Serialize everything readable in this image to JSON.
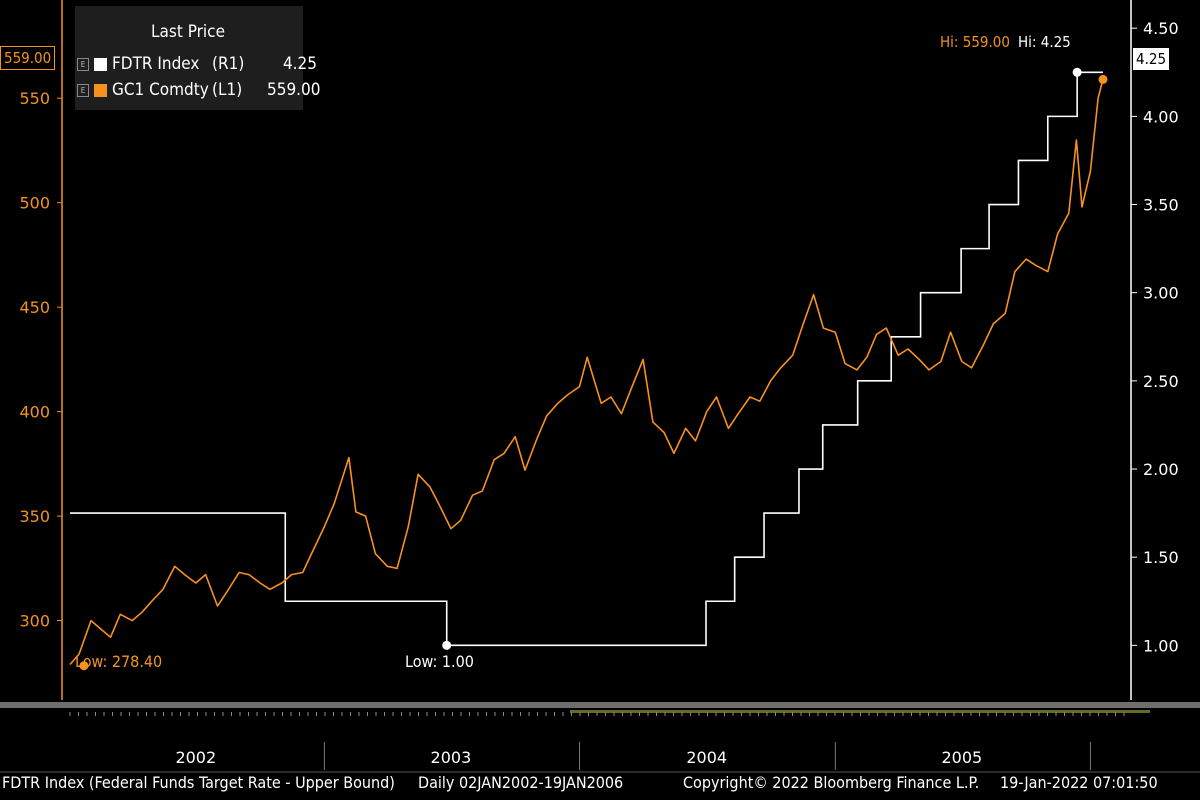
{
  "legend": {
    "title": "Last Price",
    "items": [
      {
        "ticker": "FDTR Index",
        "axis": "(R1)",
        "value": "4.25",
        "color": "#ffffff"
      },
      {
        "ticker": "GC1 Comdty",
        "axis": "(L1)",
        "value": "559.00",
        "color": "#f5921e"
      }
    ]
  },
  "footer": {
    "description": "FDTR Index (Federal Funds Target Rate - Upper Bound)",
    "range": "Daily 02JAN2002-19JAN2006",
    "copyright": "Copyright© 2022 Bloomberg Finance L.P.",
    "timestamp": "19-Jan-2022 07:01:50"
  },
  "annotations": {
    "gold_high": "Hi: 559.00",
    "rate_high": "Hi: 4.25",
    "gold_low": "Low: 278.40",
    "rate_low": "Low: 1.00",
    "left_flag": "559.00",
    "right_flag": "4.25"
  },
  "colors": {
    "gold": "#f5921e",
    "rate": "#ffffff",
    "background": "#000000"
  },
  "chart_data": {
    "type": "line",
    "x_tick_labels": [
      "2002",
      "2003",
      "2004",
      "2005"
    ],
    "left_axis": {
      "series": "GC1 Comdty",
      "ticks": [
        300,
        350,
        400,
        450,
        500,
        550
      ],
      "range": [
        262,
        597
      ]
    },
    "right_axis": {
      "series": "FDTR Index",
      "ticks": [
        "1.00",
        "1.50",
        "2.00",
        "2.50",
        "3.00",
        "3.50",
        "4.00",
        "4.50"
      ],
      "range": [
        0.69,
        4.66
      ]
    },
    "x_range": [
      "2002-01-02",
      "2006-01-19"
    ],
    "series": [
      {
        "name": "FDTR Index",
        "axis": "right",
        "step": true,
        "points": [
          [
            "2002-01-02",
            1.75
          ],
          [
            "2002-11-06",
            1.25
          ],
          [
            "2003-06-25",
            1.0
          ],
          [
            "2004-06-30",
            1.25
          ],
          [
            "2004-08-10",
            1.5
          ],
          [
            "2004-09-21",
            1.75
          ],
          [
            "2004-11-10",
            2.0
          ],
          [
            "2004-12-14",
            2.25
          ],
          [
            "2005-02-02",
            2.5
          ],
          [
            "2005-03-22",
            2.75
          ],
          [
            "2005-05-03",
            3.0
          ],
          [
            "2005-06-30",
            3.25
          ],
          [
            "2005-08-09",
            3.5
          ],
          [
            "2005-09-20",
            3.75
          ],
          [
            "2005-11-01",
            4.0
          ],
          [
            "2005-12-13",
            4.25
          ],
          [
            "2006-01-19",
            4.25
          ]
        ]
      },
      {
        "name": "GC1 Comdty",
        "axis": "left",
        "points": [
          [
            "2002-01-02",
            279
          ],
          [
            "2002-01-15",
            284
          ],
          [
            "2002-02-01",
            300
          ],
          [
            "2002-02-15",
            296
          ],
          [
            "2002-03-01",
            292
          ],
          [
            "2002-03-15",
            303
          ],
          [
            "2002-04-01",
            300
          ],
          [
            "2002-04-15",
            304
          ],
          [
            "2002-05-01",
            310
          ],
          [
            "2002-05-15",
            315
          ],
          [
            "2002-06-01",
            326
          ],
          [
            "2002-06-15",
            322
          ],
          [
            "2002-07-01",
            318
          ],
          [
            "2002-07-15",
            322
          ],
          [
            "2002-08-01",
            307
          ],
          [
            "2002-08-15",
            314
          ],
          [
            "2002-09-01",
            323
          ],
          [
            "2002-09-15",
            322
          ],
          [
            "2002-10-01",
            318
          ],
          [
            "2002-10-15",
            315
          ],
          [
            "2002-11-01",
            318
          ],
          [
            "2002-11-15",
            322
          ],
          [
            "2002-12-01",
            323
          ],
          [
            "2002-12-15",
            333
          ],
          [
            "2003-01-01",
            345
          ],
          [
            "2003-01-15",
            356
          ],
          [
            "2003-02-05",
            378
          ],
          [
            "2003-02-15",
            352
          ],
          [
            "2003-03-01",
            350
          ],
          [
            "2003-03-15",
            332
          ],
          [
            "2003-04-01",
            326
          ],
          [
            "2003-04-15",
            325
          ],
          [
            "2003-05-01",
            345
          ],
          [
            "2003-05-15",
            370
          ],
          [
            "2003-06-01",
            364
          ],
          [
            "2003-06-15",
            355
          ],
          [
            "2003-07-01",
            344
          ],
          [
            "2003-07-15",
            348
          ],
          [
            "2003-08-01",
            360
          ],
          [
            "2003-08-15",
            362
          ],
          [
            "2003-09-01",
            377
          ],
          [
            "2003-09-15",
            380
          ],
          [
            "2003-10-01",
            388
          ],
          [
            "2003-10-15",
            372
          ],
          [
            "2003-11-01",
            387
          ],
          [
            "2003-11-15",
            398
          ],
          [
            "2003-12-01",
            404
          ],
          [
            "2003-12-15",
            408
          ],
          [
            "2004-01-01",
            412
          ],
          [
            "2004-01-12",
            426
          ],
          [
            "2004-02-01",
            404
          ],
          [
            "2004-02-15",
            407
          ],
          [
            "2004-03-01",
            399
          ],
          [
            "2004-03-15",
            411
          ],
          [
            "2004-04-01",
            425
          ],
          [
            "2004-04-15",
            395
          ],
          [
            "2004-05-01",
            390
          ],
          [
            "2004-05-15",
            380
          ],
          [
            "2004-06-01",
            392
          ],
          [
            "2004-06-15",
            386
          ],
          [
            "2004-07-01",
            400
          ],
          [
            "2004-07-15",
            407
          ],
          [
            "2004-08-01",
            392
          ],
          [
            "2004-08-15",
            399
          ],
          [
            "2004-09-01",
            407
          ],
          [
            "2004-09-15",
            405
          ],
          [
            "2004-10-01",
            415
          ],
          [
            "2004-10-15",
            421
          ],
          [
            "2004-11-01",
            427
          ],
          [
            "2004-11-15",
            441
          ],
          [
            "2004-12-01",
            456
          ],
          [
            "2004-12-15",
            440
          ],
          [
            "2005-01-01",
            438
          ],
          [
            "2005-01-15",
            423
          ],
          [
            "2005-02-01",
            420
          ],
          [
            "2005-02-15",
            426
          ],
          [
            "2005-03-01",
            437
          ],
          [
            "2005-03-15",
            440
          ],
          [
            "2005-04-01",
            427
          ],
          [
            "2005-04-15",
            430
          ],
          [
            "2005-05-01",
            425
          ],
          [
            "2005-05-15",
            420
          ],
          [
            "2005-06-01",
            424
          ],
          [
            "2005-06-15",
            438
          ],
          [
            "2005-07-01",
            424
          ],
          [
            "2005-07-15",
            421
          ],
          [
            "2005-08-01",
            432
          ],
          [
            "2005-08-15",
            442
          ],
          [
            "2005-09-01",
            447
          ],
          [
            "2005-09-15",
            467
          ],
          [
            "2005-10-01",
            473
          ],
          [
            "2005-10-15",
            470
          ],
          [
            "2005-11-01",
            467
          ],
          [
            "2005-11-15",
            485
          ],
          [
            "2005-12-01",
            495
          ],
          [
            "2005-12-12",
            530
          ],
          [
            "2005-12-20",
            498
          ],
          [
            "2006-01-01",
            515
          ],
          [
            "2006-01-12",
            550
          ],
          [
            "2006-01-19",
            559
          ]
        ]
      }
    ],
    "high_low": {
      "gold_low": 278.4,
      "gold_high": 559.0,
      "rate_low": 1.0,
      "rate_high": 4.25
    }
  }
}
